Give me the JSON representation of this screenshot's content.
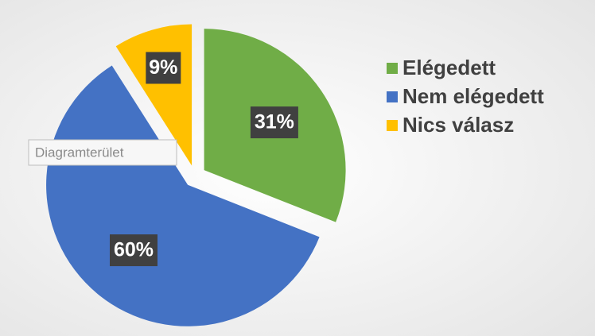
{
  "chart_data": {
    "type": "pie",
    "categories": [
      "Elégedett",
      "Nem elégedett",
      "Nics válasz"
    ],
    "values": [
      31,
      60,
      9
    ],
    "value_labels": [
      "31%",
      "60%",
      "9%"
    ],
    "colors": [
      "#70ad47",
      "#4472c4",
      "#ffc000"
    ],
    "legend": "right",
    "annotation": "Diagramterület"
  }
}
